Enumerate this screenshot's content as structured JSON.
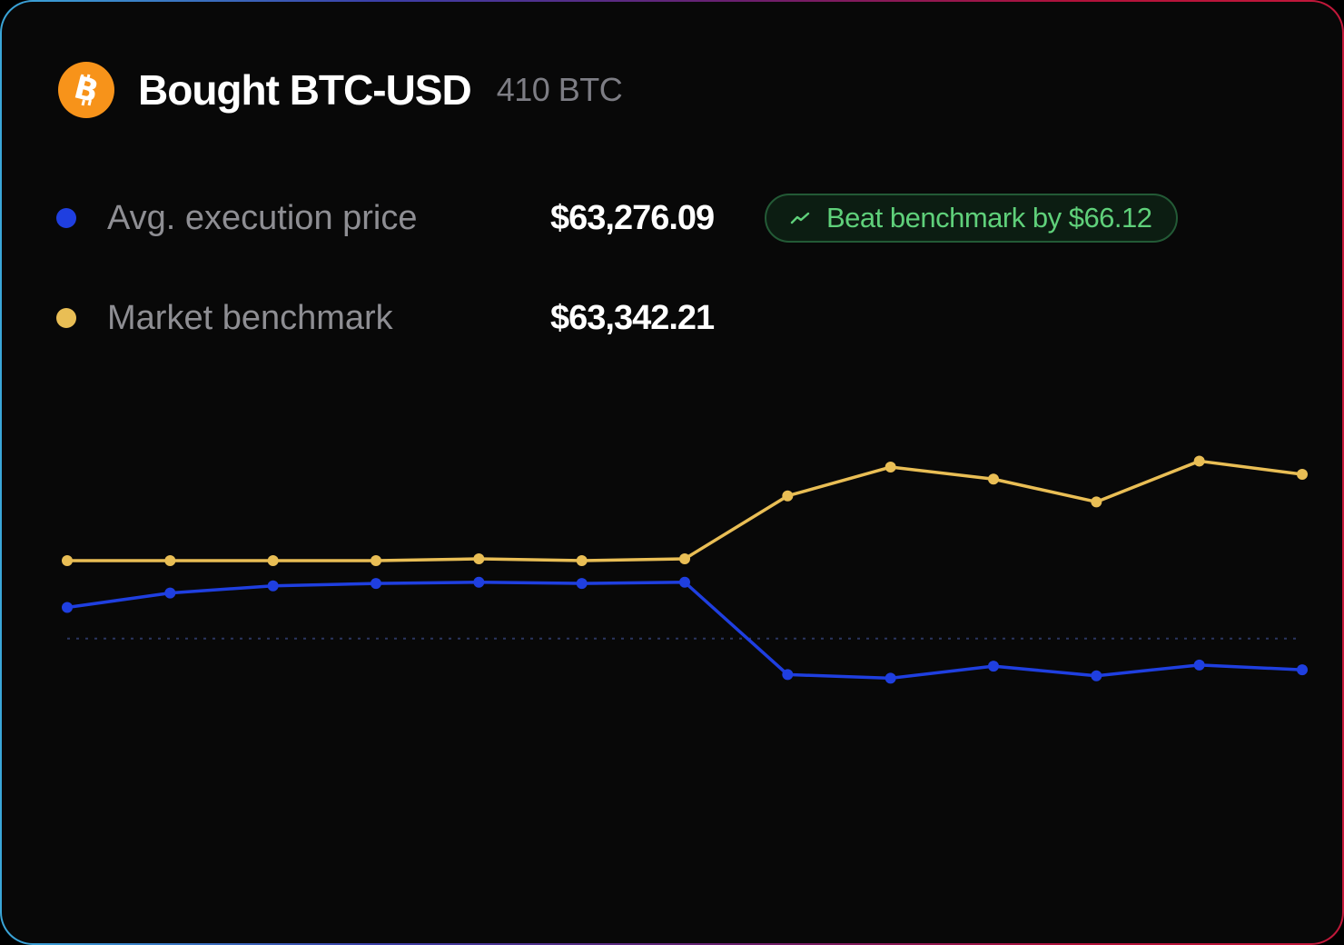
{
  "header": {
    "title": "Bought BTC-USD",
    "quantity": "410 BTC",
    "icon": "bitcoin-icon"
  },
  "legend": [
    {
      "label": "Avg. execution price",
      "value": "$63,276.09",
      "color": "#1f3fe0"
    },
    {
      "label": "Market benchmark",
      "value": "$63,342.21",
      "color": "#e9be55"
    }
  ],
  "badge": {
    "text": "Beat benchmark by $66.12",
    "icon": "trending-up-icon",
    "color": "#5fd07a"
  },
  "chart_data": {
    "type": "line",
    "x": [
      1,
      2,
      3,
      4,
      5,
      6,
      7,
      8,
      9,
      10,
      11,
      12,
      13
    ],
    "series": [
      {
        "color": "#e9be55",
        "values": [
          0.0,
          0.0,
          0.0,
          0.0,
          0.15,
          0.0,
          0.15,
          5.4,
          7.8,
          6.8,
          4.9,
          8.3,
          7.2
        ]
      },
      {
        "color": "#1f3fe0",
        "values": [
          -3.9,
          -2.7,
          -2.1,
          -1.9,
          -1.8,
          -1.9,
          -1.8,
          -9.5,
          -9.8,
          -8.8,
          -9.6,
          -8.7,
          -9.1
        ]
      }
    ],
    "reference_line": -6.5,
    "grid": false,
    "ylim": [
      -20,
      10
    ]
  }
}
